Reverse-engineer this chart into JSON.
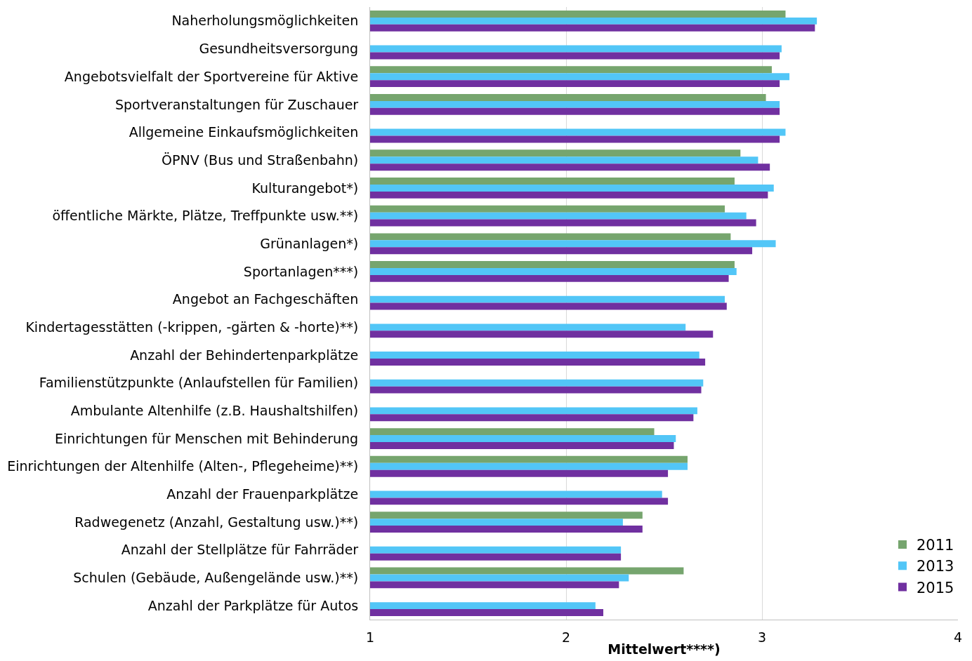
{
  "chart_data": {
    "type": "bar",
    "orientation": "horizontal",
    "xlabel": "Mittelwert****)",
    "categories": [
      "Naherholungsmöglichkeiten",
      "Gesundheitsversorgung",
      "Angebotsvielfalt der Sportvereine für Aktive",
      "Sportveranstaltungen für Zuschauer",
      "Allgemeine Einkaufsmöglichkeiten",
      "ÖPNV (Bus und Straßenbahn)",
      "Kulturangebot*)",
      "öffentliche Märkte, Plätze, Treffpunkte usw.**)",
      "Grünanlagen*)",
      "Sportanlagen***)",
      "Angebot an Fachgeschäften",
      "Kindertagesstätten (-krippen, -gärten & -horte)**)",
      "Anzahl der Behindertenparkplätze",
      "Familienstützpunkte (Anlaufstellen für Familien)",
      "Ambulante Altenhilfe (z.B. Haushaltshilfen)",
      "Einrichtungen für Menschen mit Behinderung",
      "Einrichtungen der Altenhilfe (Alten-, Pflegeheime)**)",
      "Anzahl der Frauenparkplätze",
      "Radwegenetz (Anzahl, Gestaltung usw.)**)",
      "Anzahl der Stellplätze für Fahrräder",
      "Schulen (Gebäude, Außengelände usw.)**)",
      "Anzahl der Parkplätze für Autos"
    ],
    "series": [
      {
        "name": "2011",
        "color": "#76a56e",
        "values": [
          3.12,
          null,
          3.05,
          3.02,
          null,
          2.89,
          2.86,
          2.81,
          2.84,
          2.86,
          null,
          null,
          null,
          null,
          null,
          2.45,
          2.62,
          null,
          2.39,
          null,
          2.6,
          null
        ]
      },
      {
        "name": "2013",
        "color": "#52c6f7",
        "values": [
          3.28,
          3.1,
          3.14,
          3.09,
          3.12,
          2.98,
          3.06,
          2.92,
          3.07,
          2.87,
          2.81,
          2.61,
          2.68,
          2.7,
          2.67,
          2.56,
          2.62,
          2.49,
          2.29,
          2.28,
          2.32,
          2.15
        ]
      },
      {
        "name": "2015",
        "color": "#7030a0",
        "values": [
          3.27,
          3.09,
          3.09,
          3.09,
          3.09,
          3.04,
          3.03,
          2.97,
          2.95,
          2.83,
          2.82,
          2.75,
          2.71,
          2.69,
          2.65,
          2.55,
          2.52,
          2.52,
          2.39,
          2.28,
          2.27,
          2.19
        ]
      }
    ],
    "xlim": [
      1,
      4
    ],
    "xticks": [
      1,
      2,
      3,
      4
    ],
    "grid": "x",
    "legend": "bottom right"
  }
}
